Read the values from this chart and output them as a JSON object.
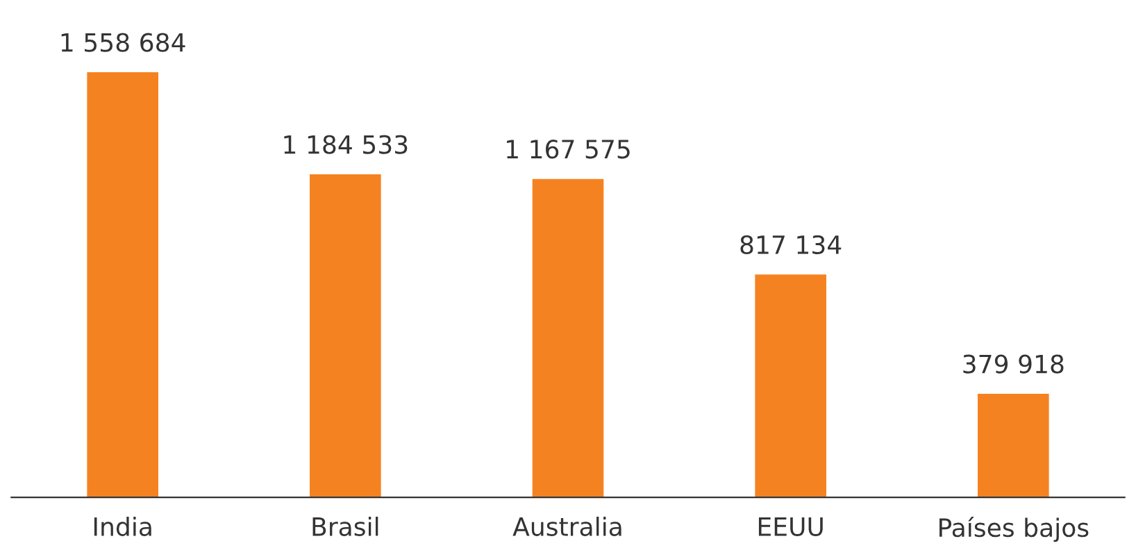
{
  "chart_data": {
    "type": "bar",
    "categories": [
      "India",
      "Brasil",
      "Australia",
      "EEUU",
      "Países bajos"
    ],
    "values": [
      1558684,
      1184533,
      1167575,
      817134,
      379918
    ],
    "value_labels": [
      "1 558 684",
      "1 184 533",
      "1 167 575",
      "817 134",
      "379 918"
    ],
    "color": "#f58220",
    "grid": false,
    "legend": false
  }
}
